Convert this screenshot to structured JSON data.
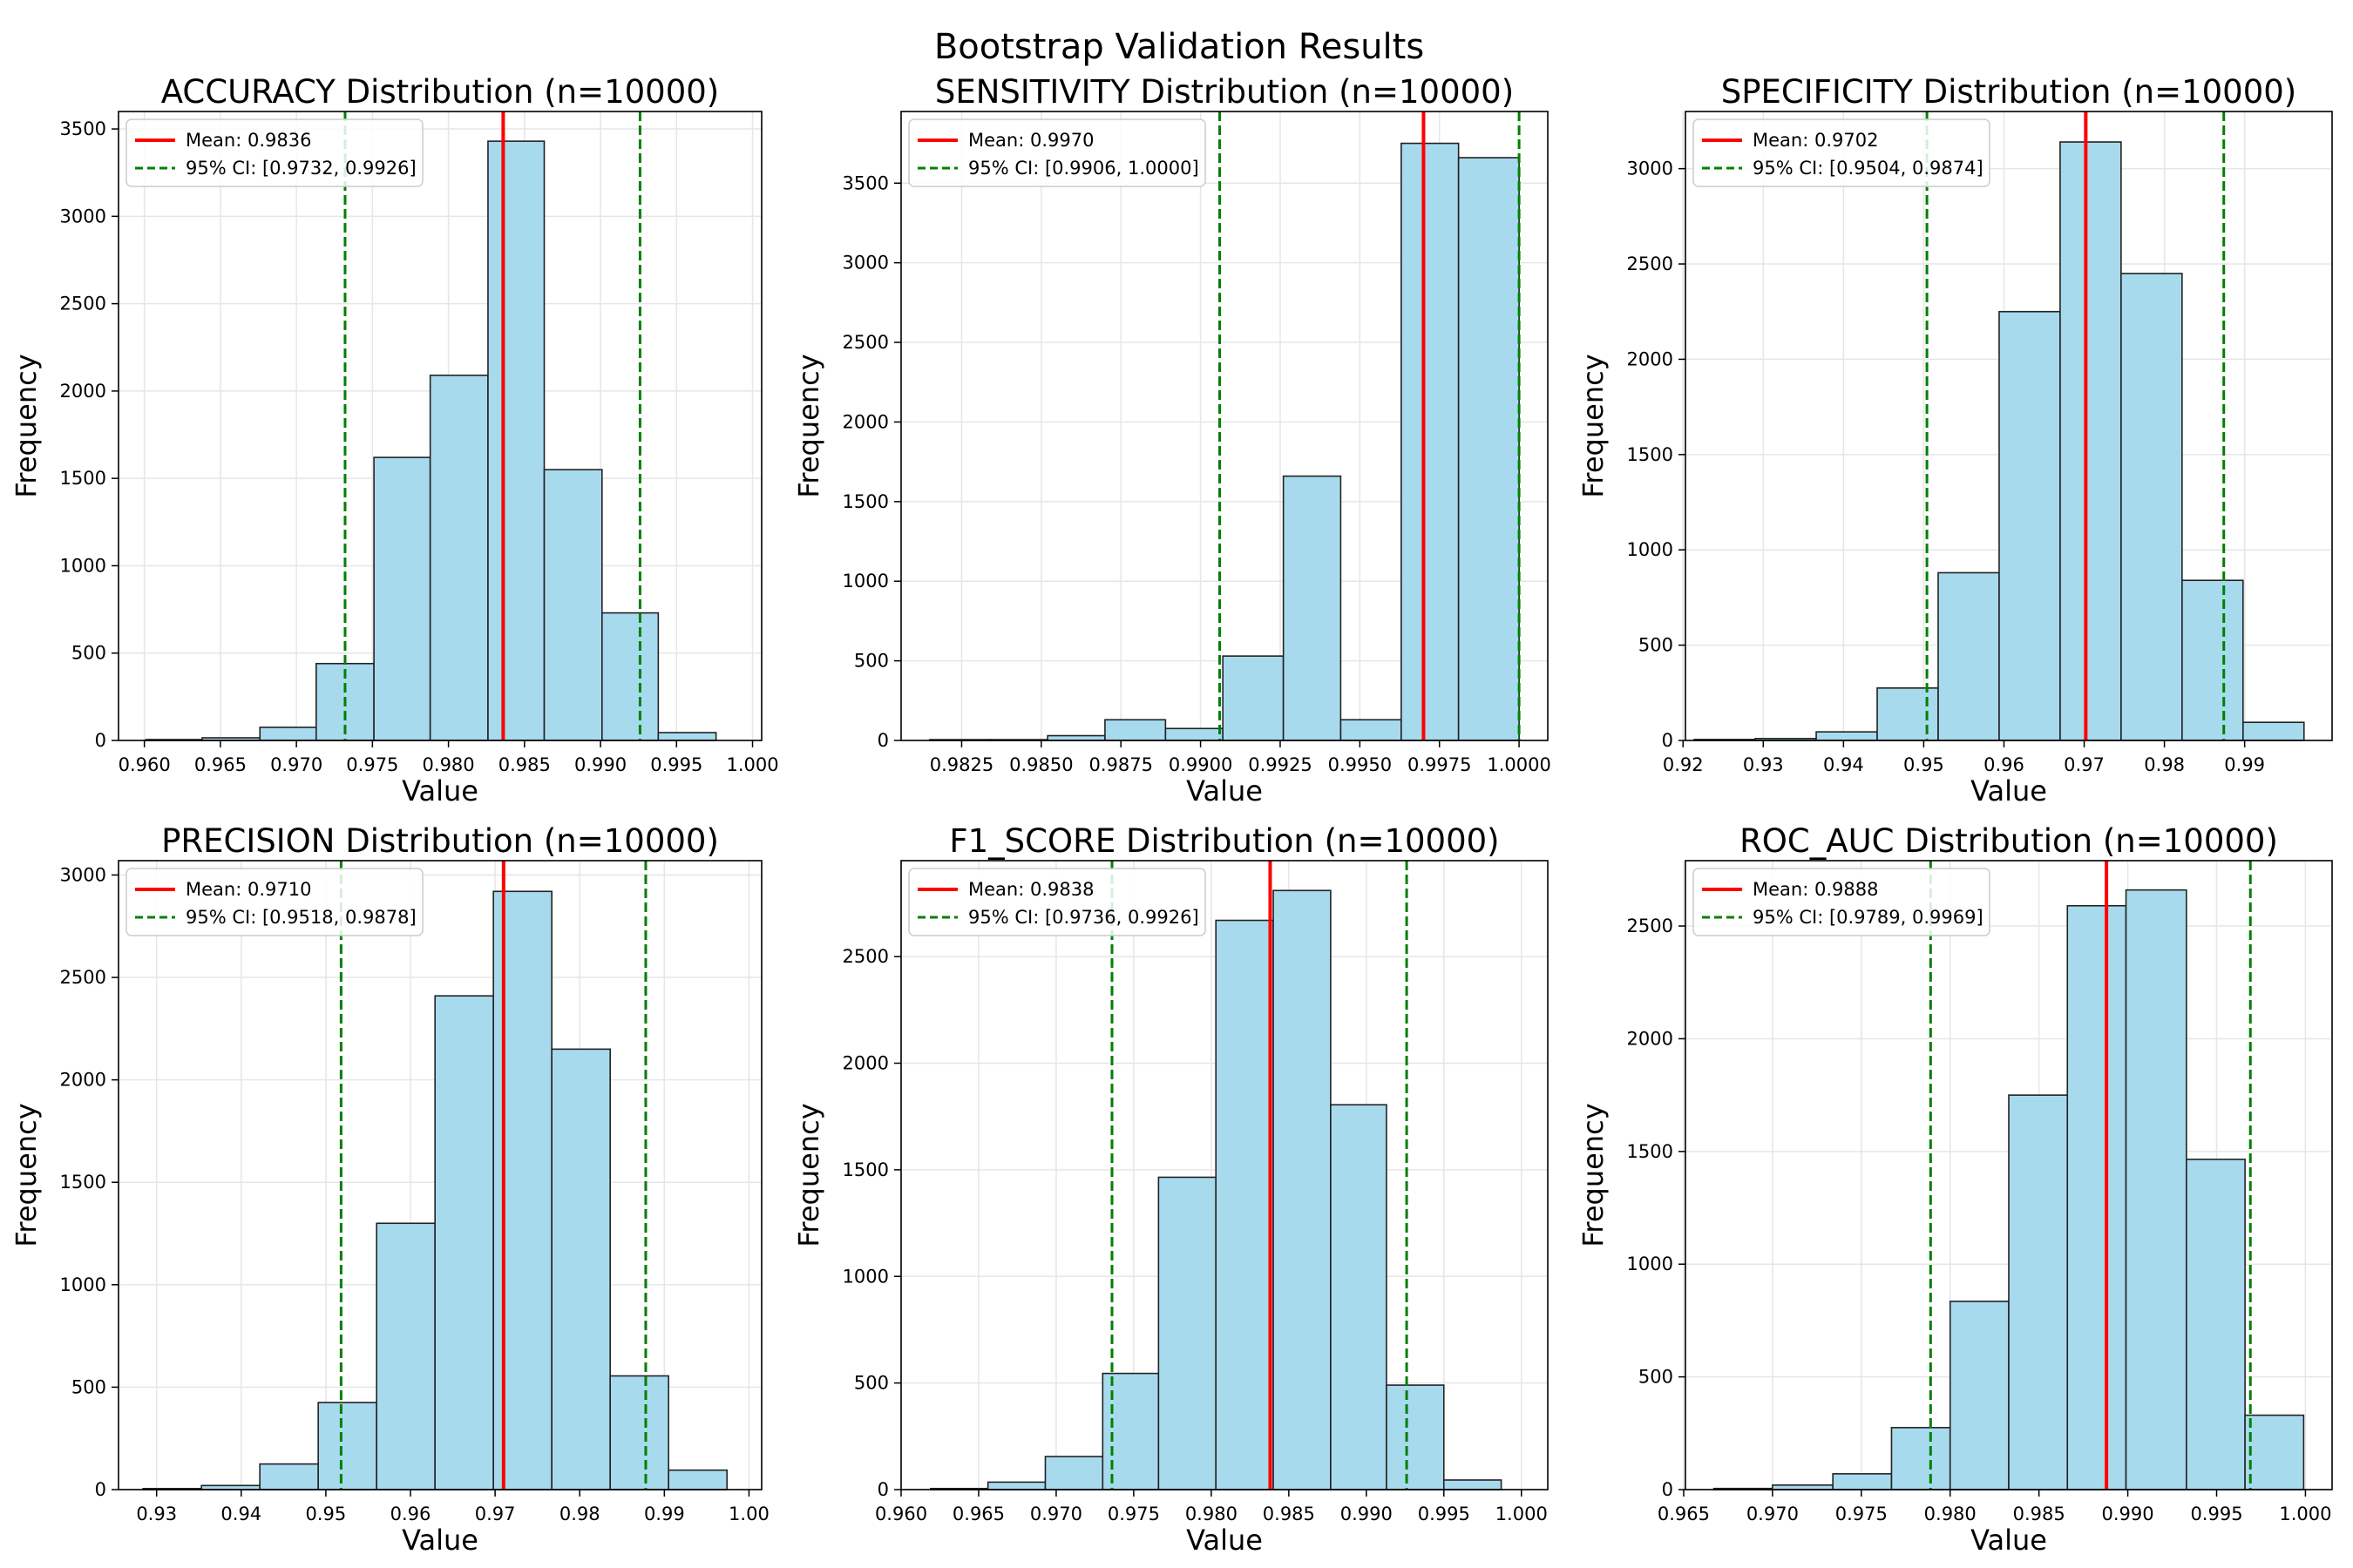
{
  "figure_title": "Bootstrap Validation Results",
  "chart_data": [
    {
      "type": "bar",
      "title": "ACCURACY Distribution (n=10000)",
      "xlabel": "Value",
      "ylabel": "Frequency",
      "xlim": [
        0.9583,
        1.0006
      ],
      "ylim": [
        0,
        3600
      ],
      "xticks": [
        0.96,
        0.965,
        0.97,
        0.975,
        0.98,
        0.985,
        0.99,
        0.995,
        1.0
      ],
      "xtick_labels": [
        "0.960",
        "0.965",
        "0.970",
        "0.975",
        "0.980",
        "0.985",
        "0.990",
        "0.995",
        "1.000"
      ],
      "yticks": [
        0,
        500,
        1000,
        1500,
        2000,
        2500,
        3000,
        3500
      ],
      "ytick_labels": [
        "0",
        "500",
        "1000",
        "1500",
        "2000",
        "2500",
        "3000",
        "3500"
      ],
      "bin_edges": [
        0.9601,
        0.9638,
        0.9676,
        0.9713,
        0.9751,
        0.9788,
        0.9826,
        0.9863,
        0.9901,
        0.9938,
        0.9976
      ],
      "values": [
        5,
        15,
        75,
        440,
        1620,
        2090,
        3430,
        1550,
        730,
        45
      ],
      "mean": 0.9836,
      "ci": [
        0.9732,
        0.9926
      ],
      "legend": {
        "mean_label": "Mean: 0.9836",
        "ci_label": "95% CI: [0.9732, 0.9926]",
        "placement": "upper-left"
      }
    },
    {
      "type": "bar",
      "title": "SENSITIVITY Distribution (n=10000)",
      "xlabel": "Value",
      "ylabel": "Frequency",
      "xlim": [
        0.9806,
        1.0009
      ],
      "ylim": [
        0,
        3950
      ],
      "xticks": [
        0.9825,
        0.985,
        0.9875,
        0.99,
        0.9925,
        0.995,
        0.9975,
        1.0
      ],
      "xtick_labels": [
        "0.9825",
        "0.9850",
        "0.9875",
        "0.9900",
        "0.9925",
        "0.9950",
        "0.9975",
        "1.0000"
      ],
      "yticks": [
        0,
        500,
        1000,
        1500,
        2000,
        2500,
        3000,
        3500
      ],
      "ytick_labels": [
        "0",
        "500",
        "1000",
        "1500",
        "2000",
        "2500",
        "3000",
        "3500"
      ],
      "bin_edges": [
        0.9815,
        0.9834,
        0.9852,
        0.987,
        0.9889,
        0.9907,
        0.9926,
        0.9944,
        0.9963,
        0.9981,
        1.0
      ],
      "values": [
        5,
        5,
        30,
        130,
        75,
        530,
        1660,
        130,
        3750,
        3660
      ],
      "mean": 0.997,
      "ci": [
        0.9906,
        1.0
      ],
      "legend": {
        "mean_label": "Mean: 0.9970",
        "ci_label": "95% CI: [0.9906, 1.0000]",
        "placement": "upper-left"
      }
    },
    {
      "type": "bar",
      "title": "SPECIFICITY Distribution (n=10000)",
      "xlabel": "Value",
      "ylabel": "Frequency",
      "xlim": [
        0.9203,
        1.0009
      ],
      "ylim": [
        0,
        3300
      ],
      "xticks": [
        0.92,
        0.93,
        0.94,
        0.95,
        0.96,
        0.97,
        0.98,
        0.99
      ],
      "xtick_labels": [
        "0.92",
        "0.93",
        "0.94",
        "0.95",
        "0.96",
        "0.97",
        "0.98",
        "0.99"
      ],
      "yticks": [
        0,
        500,
        1000,
        1500,
        2000,
        2500,
        3000
      ],
      "ytick_labels": [
        "0",
        "500",
        "1000",
        "1500",
        "2000",
        "2500",
        "3000"
      ],
      "bin_edges": [
        0.9214,
        0.929,
        0.9366,
        0.9442,
        0.9518,
        0.9594,
        0.967,
        0.9746,
        0.9822,
        0.9898,
        0.9974
      ],
      "values": [
        5,
        10,
        45,
        275,
        880,
        2250,
        3140,
        2450,
        840,
        95
      ],
      "mean": 0.9702,
      "ci": [
        0.9504,
        0.9874
      ],
      "legend": {
        "mean_label": "Mean: 0.9702",
        "ci_label": "95% CI: [0.9504, 0.9874]",
        "placement": "upper-left"
      }
    },
    {
      "type": "bar",
      "title": "PRECISION Distribution (n=10000)",
      "xlabel": "Value",
      "ylabel": "Frequency",
      "xlim": [
        0.9255,
        1.0015
      ],
      "ylim": [
        0,
        3070
      ],
      "xticks": [
        0.93,
        0.94,
        0.95,
        0.96,
        0.97,
        0.98,
        0.99,
        1.0
      ],
      "xtick_labels": [
        "0.93",
        "0.94",
        "0.95",
        "0.96",
        "0.97",
        "0.98",
        "0.99",
        "1.00"
      ],
      "yticks": [
        0,
        500,
        1000,
        1500,
        2000,
        2500,
        3000
      ],
      "ytick_labels": [
        "0",
        "500",
        "1000",
        "1500",
        "2000",
        "2500",
        "3000"
      ],
      "bin_edges": [
        0.9284,
        0.9353,
        0.9422,
        0.9491,
        0.956,
        0.9629,
        0.9698,
        0.9767,
        0.9836,
        0.9905,
        0.9974
      ],
      "values": [
        5,
        20,
        125,
        425,
        1300,
        2410,
        2920,
        2150,
        555,
        95
      ],
      "mean": 0.971,
      "ci": [
        0.9518,
        0.9878
      ],
      "legend": {
        "mean_label": "Mean: 0.9710",
        "ci_label": "95% CI: [0.9518, 0.9878]",
        "placement": "upper-left"
      }
    },
    {
      "type": "bar",
      "title": "F1_SCORE Distribution (n=10000)",
      "xlabel": "Value",
      "ylabel": "Frequency",
      "xlim": [
        0.96,
        1.0017
      ],
      "ylim": [
        0,
        2950
      ],
      "xticks": [
        0.96,
        0.965,
        0.97,
        0.975,
        0.98,
        0.985,
        0.99,
        0.995,
        1.0
      ],
      "xtick_labels": [
        "0.960",
        "0.965",
        "0.970",
        "0.975",
        "0.980",
        "0.985",
        "0.990",
        "0.995",
        "1.000"
      ],
      "yticks": [
        0,
        500,
        1000,
        1500,
        2000,
        2500
      ],
      "ytick_labels": [
        "0",
        "500",
        "1000",
        "1500",
        "2000",
        "2500"
      ],
      "bin_edges": [
        0.9619,
        0.9656,
        0.9693,
        0.973,
        0.9766,
        0.9803,
        0.984,
        0.9877,
        0.9913,
        0.995,
        0.9987
      ],
      "values": [
        5,
        35,
        155,
        545,
        1465,
        2670,
        2810,
        1805,
        490,
        45
      ],
      "mean": 0.9838,
      "ci": [
        0.9736,
        0.9926
      ],
      "legend": {
        "mean_label": "Mean: 0.9838",
        "ci_label": "95% CI: [0.9736, 0.9926]",
        "placement": "upper-left"
      }
    },
    {
      "type": "bar",
      "title": "ROC_AUC Distribution (n=10000)",
      "xlabel": "Value",
      "ylabel": "Frequency",
      "xlim": [
        0.9651,
        1.0015
      ],
      "ylim": [
        0,
        2790
      ],
      "xticks": [
        0.965,
        0.97,
        0.975,
        0.98,
        0.985,
        0.99,
        0.995,
        1.0
      ],
      "xtick_labels": [
        "0.965",
        "0.970",
        "0.975",
        "0.980",
        "0.985",
        "0.990",
        "0.995",
        "1.000"
      ],
      "yticks": [
        0,
        500,
        1000,
        1500,
        2000,
        2500
      ],
      "ytick_labels": [
        "0",
        "500",
        "1000",
        "1500",
        "2000",
        "2500"
      ],
      "bin_edges": [
        0.9667,
        0.97,
        0.9734,
        0.9767,
        0.98,
        0.9833,
        0.9866,
        0.9899,
        0.9933,
        0.9966,
        0.9999
      ],
      "values": [
        5,
        20,
        70,
        275,
        835,
        1750,
        2590,
        2660,
        1465,
        330
      ],
      "mean": 0.9888,
      "ci": [
        0.9789,
        0.9969
      ],
      "legend": {
        "mean_label": "Mean: 0.9888",
        "ci_label": "95% CI: [0.9789, 0.9969]",
        "placement": "upper-left"
      }
    }
  ]
}
